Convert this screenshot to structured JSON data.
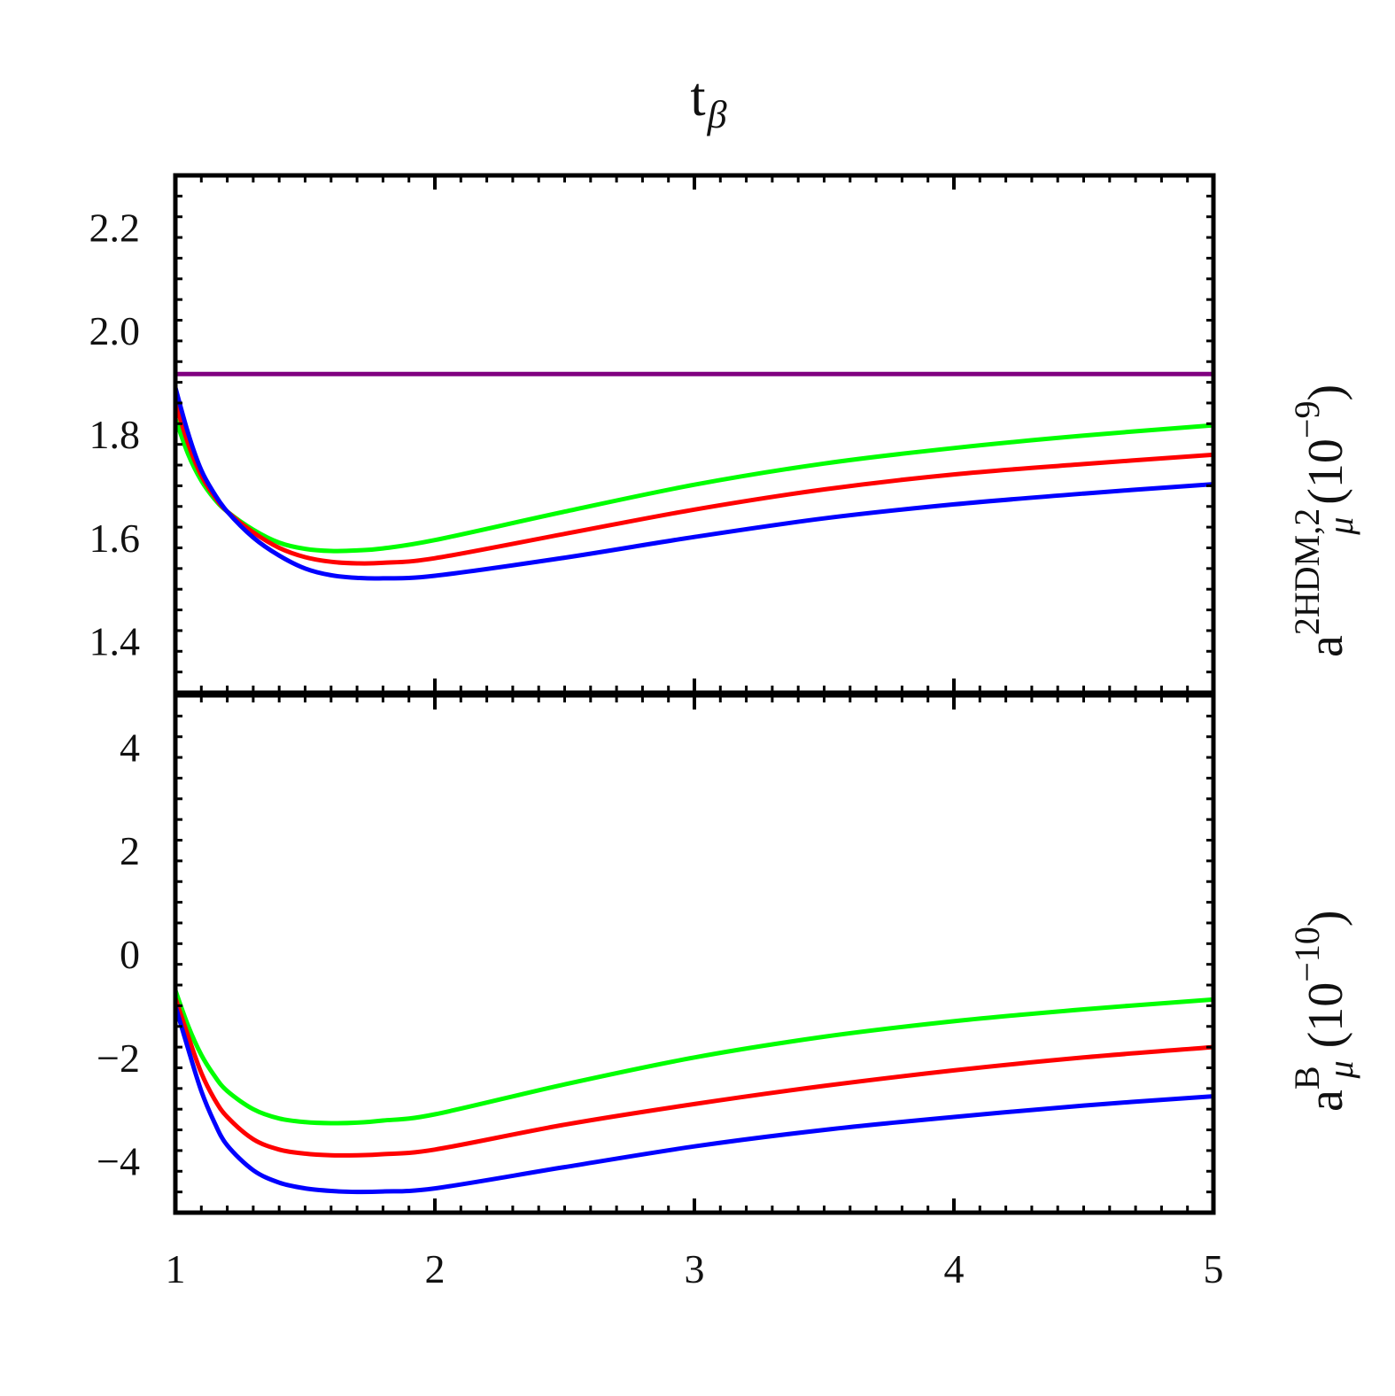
{
  "chart_data": [
    {
      "type": "line",
      "panel": "top",
      "title": "tβ",
      "title_main": "t",
      "title_sub": "β",
      "ylabel": "a_μ^{2HDM,2} (10^{-9})",
      "ylabel_parts": {
        "base": "a",
        "sup": "2HDM,2",
        "sub": "μ",
        "unit_open": "(10",
        "unit_exp": "−9",
        "unit_close": ")"
      },
      "xlim": [
        1,
        5
      ],
      "ylim": [
        1.3,
        2.3
      ],
      "yticks": [
        1.4,
        1.6,
        1.8,
        2.0,
        2.2
      ],
      "ytick_labels": [
        "1.4",
        "1.6",
        "1.8",
        "2.0",
        "2.2"
      ],
      "series": [
        {
          "color": "#800080",
          "x": [
            1,
            5
          ],
          "y": [
            1.916,
            1.916
          ]
        },
        {
          "color": "#00ff00",
          "x": [
            1.0,
            1.05,
            1.1,
            1.15,
            1.2,
            1.3,
            1.4,
            1.5,
            1.6,
            1.7,
            1.8,
            2.0,
            2.5,
            3.0,
            3.5,
            4.0,
            4.5,
            5.0
          ],
          "y": [
            1.83,
            1.76,
            1.71,
            1.675,
            1.65,
            1.615,
            1.59,
            1.578,
            1.574,
            1.575,
            1.579,
            1.595,
            1.65,
            1.702,
            1.743,
            1.773,
            1.797,
            1.817
          ]
        },
        {
          "color": "#ff0000",
          "x": [
            1.0,
            1.05,
            1.1,
            1.15,
            1.2,
            1.3,
            1.4,
            1.5,
            1.6,
            1.7,
            1.8,
            2.0,
            2.5,
            3.0,
            3.5,
            4.0,
            4.5,
            5.0
          ],
          "y": [
            1.86,
            1.78,
            1.72,
            1.68,
            1.65,
            1.61,
            1.58,
            1.562,
            1.553,
            1.55,
            1.551,
            1.56,
            1.607,
            1.654,
            1.693,
            1.722,
            1.742,
            1.76
          ]
        },
        {
          "color": "#0000ff",
          "x": [
            1.0,
            1.05,
            1.1,
            1.15,
            1.2,
            1.3,
            1.4,
            1.5,
            1.6,
            1.7,
            1.8,
            2.0,
            2.5,
            3.0,
            3.5,
            4.0,
            4.5,
            5.0
          ],
          "y": [
            1.89,
            1.8,
            1.73,
            1.685,
            1.65,
            1.6,
            1.565,
            1.54,
            1.527,
            1.522,
            1.521,
            1.526,
            1.561,
            1.601,
            1.637,
            1.664,
            1.685,
            1.703
          ]
        }
      ]
    },
    {
      "type": "line",
      "panel": "bottom",
      "xlabel": "",
      "ylabel": "a_μ^B (10^{-10})",
      "ylabel_parts": {
        "base": "a",
        "sup": "B",
        "sub": "μ",
        "unit_open": "(10",
        "unit_exp": "−10",
        "unit_close": ")"
      },
      "xlim": [
        1,
        5
      ],
      "ylim": [
        -5,
        5
      ],
      "xticks": [
        1,
        2,
        3,
        4,
        5
      ],
      "xtick_labels": [
        "1",
        "2",
        "3",
        "4",
        "5"
      ],
      "yticks": [
        -4,
        -2,
        0,
        2,
        4
      ],
      "ytick_labels": [
        "−4",
        "−2",
        "0",
        "2",
        "4"
      ],
      "series": [
        {
          "color": "#00ff00",
          "x": [
            1.0,
            1.05,
            1.1,
            1.15,
            1.2,
            1.3,
            1.4,
            1.5,
            1.6,
            1.7,
            1.8,
            2.0,
            2.5,
            3.0,
            3.5,
            4.0,
            4.5,
            5.0
          ],
          "y": [
            -0.7,
            -1.4,
            -1.95,
            -2.35,
            -2.65,
            -3.0,
            -3.18,
            -3.25,
            -3.27,
            -3.26,
            -3.22,
            -3.1,
            -2.52,
            -2.0,
            -1.6,
            -1.3,
            -1.07,
            -0.88
          ]
        },
        {
          "color": "#ff0000",
          "x": [
            1.0,
            1.05,
            1.1,
            1.15,
            1.2,
            1.3,
            1.4,
            1.5,
            1.6,
            1.7,
            1.8,
            2.0,
            2.5,
            3.0,
            3.5,
            4.0,
            4.5,
            5.0
          ],
          "y": [
            -0.85,
            -1.6,
            -2.3,
            -2.8,
            -3.15,
            -3.58,
            -3.78,
            -3.86,
            -3.89,
            -3.89,
            -3.87,
            -3.78,
            -3.3,
            -2.9,
            -2.55,
            -2.25,
            -2.0,
            -1.8
          ]
        },
        {
          "color": "#0000ff",
          "x": [
            1.0,
            1.05,
            1.1,
            1.15,
            1.2,
            1.3,
            1.4,
            1.5,
            1.6,
            1.7,
            1.8,
            2.0,
            2.5,
            3.0,
            3.5,
            4.0,
            4.5,
            5.0
          ],
          "y": [
            -1.0,
            -1.85,
            -2.65,
            -3.25,
            -3.7,
            -4.18,
            -4.42,
            -4.53,
            -4.58,
            -4.6,
            -4.59,
            -4.53,
            -4.12,
            -3.72,
            -3.4,
            -3.15,
            -2.93,
            -2.75
          ]
        }
      ]
    }
  ]
}
